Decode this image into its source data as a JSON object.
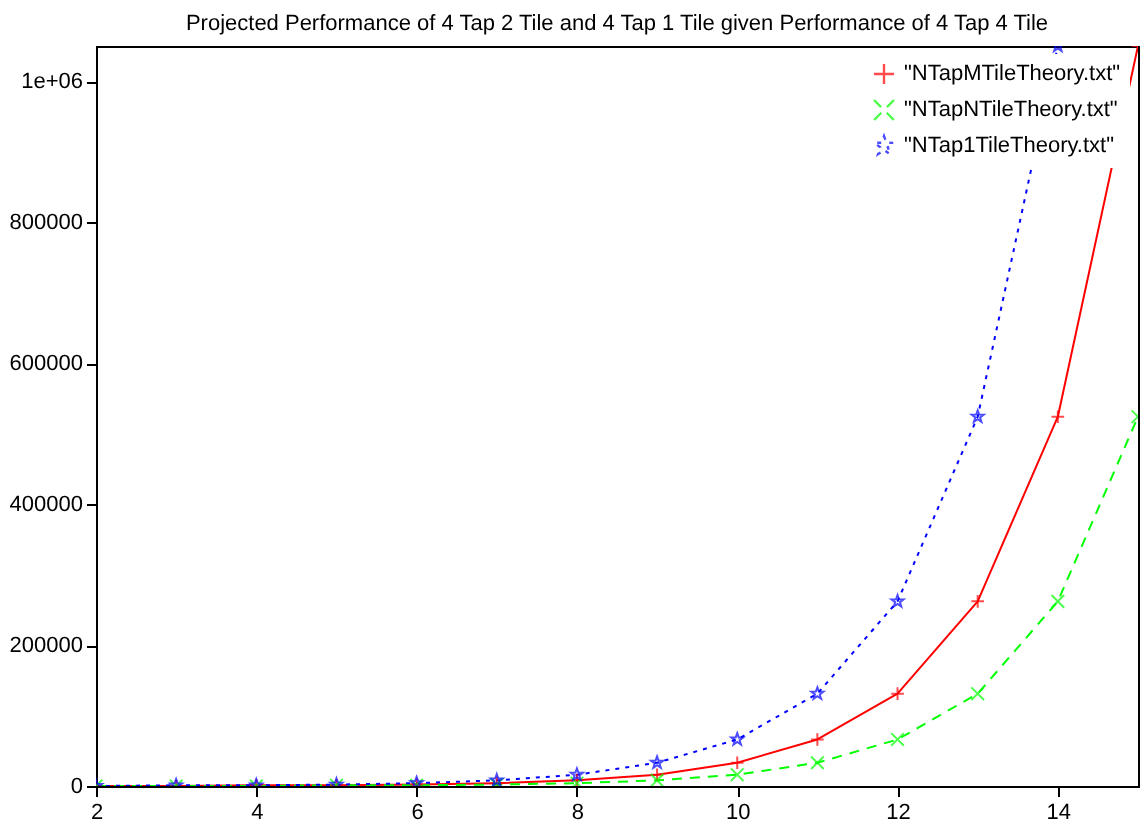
{
  "chart_data": {
    "type": "line",
    "title": "Projected Performance of 4 Tap 2 Tile and 4 Tap 1 Tile given Performance of 4 Tap 4 Tile",
    "x": [
      2,
      3,
      4,
      5,
      6,
      7,
      8,
      9,
      10,
      11,
      12,
      13,
      14,
      15
    ],
    "series": [
      {
        "name": "\"NTapMTileTheory.txt\"",
        "color": "#ff0000",
        "marker": "plus",
        "line_style": "solid",
        "values": [
          0,
          0,
          1000,
          1000,
          2000,
          4000,
          8000,
          16000,
          33000,
          66000,
          131000,
          262000,
          524000,
          1050000
        ]
      },
      {
        "name": "\"NTapNTileTheory.txt\"",
        "color": "#00ff00",
        "marker": "cross",
        "line_style": "dashed",
        "values": [
          0,
          0,
          0,
          1000,
          1000,
          2000,
          4000,
          8000,
          16000,
          33000,
          66000,
          131000,
          262000,
          524000
        ]
      },
      {
        "name": "\"NTap1TileTheory.txt\"",
        "color": "#0000ff",
        "marker": "star",
        "line_style": "dotted",
        "values": [
          0,
          1000,
          1000,
          2000,
          4000,
          8000,
          16000,
          33000,
          66000,
          131000,
          262000,
          524000,
          1050000,
          null
        ]
      }
    ],
    "xlim": [
      2,
      15
    ],
    "xticks": [
      2,
      4,
      6,
      8,
      10,
      12,
      14
    ],
    "ylim": [
      0,
      1050000
    ],
    "yticks": [
      0,
      200000,
      400000,
      600000,
      800000,
      {
        "value": 1000000,
        "label": "1e+06"
      }
    ],
    "grid": false,
    "legend": "top right"
  }
}
